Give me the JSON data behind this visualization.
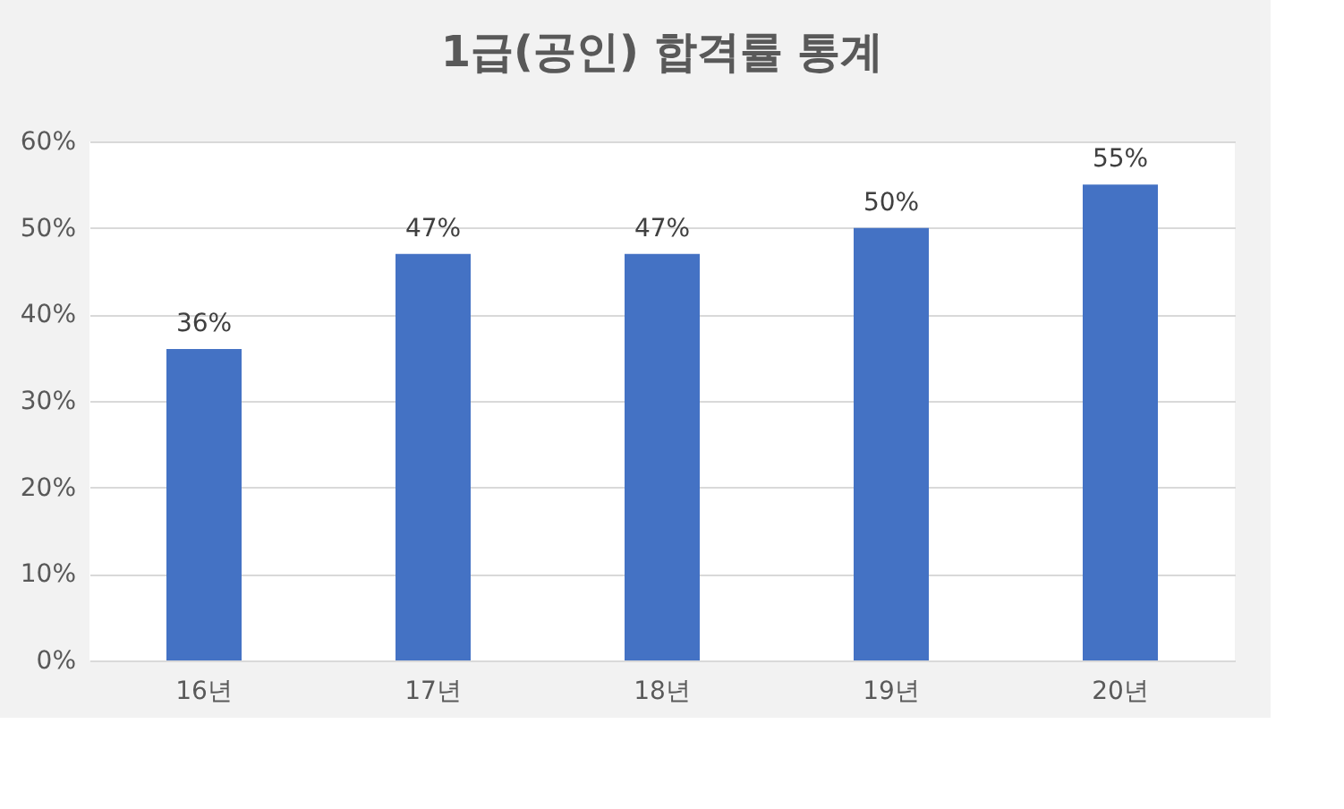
{
  "chart_data": {
    "type": "bar",
    "title": "1급(공인) 합격률 통계",
    "categories": [
      "16년",
      "17년",
      "18년",
      "19년",
      "20년"
    ],
    "values": [
      36,
      47,
      47,
      50,
      55
    ],
    "value_labels": [
      "36%",
      "47%",
      "47%",
      "50%",
      "55%"
    ],
    "color": "#4472c4",
    "ylim": [
      0,
      60
    ],
    "yticks": [
      {
        "value": 0,
        "label": "0%"
      },
      {
        "value": 10,
        "label": "10%"
      },
      {
        "value": 20,
        "label": "20%"
      },
      {
        "value": 30,
        "label": "30%"
      },
      {
        "value": 40,
        "label": "40%"
      },
      {
        "value": 50,
        "label": "50%"
      },
      {
        "value": 60,
        "label": "60%"
      }
    ],
    "grid": "y"
  }
}
